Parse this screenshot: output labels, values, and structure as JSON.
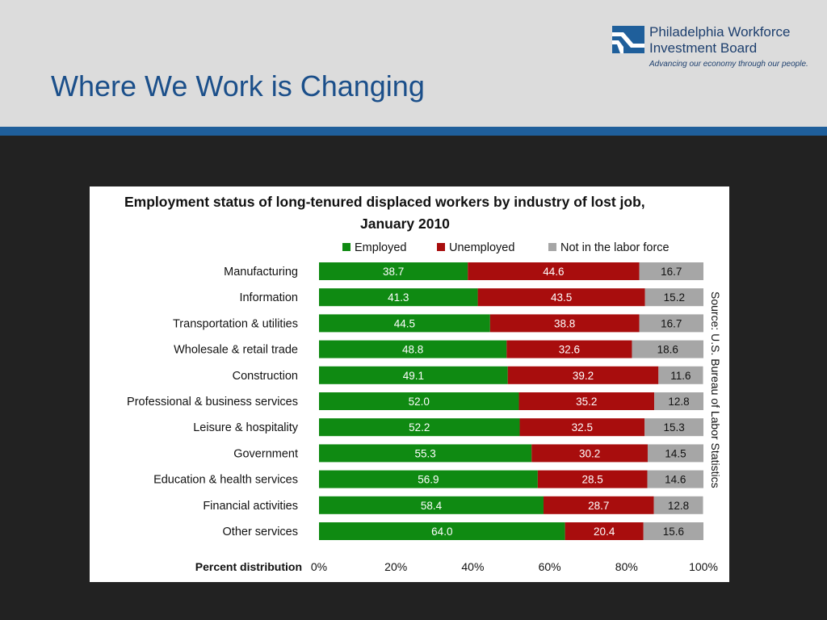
{
  "slide": {
    "title": "Where We Work is Changing"
  },
  "logo": {
    "name_line1": "Philadelphia Workforce",
    "name_line2": "Investment Board",
    "tagline": "Advancing our economy through our people."
  },
  "colors": {
    "header_bg": "#dcdcdc",
    "stripe": "#1f5f9b",
    "slide_bg": "#222222",
    "title_text": "#1b4f8a",
    "employed": "#0f8a12",
    "unemployed": "#a80d0d",
    "not_in_labor_force": "#a6a6a6"
  },
  "chart_data": {
    "type": "bar",
    "orientation": "horizontal",
    "stacked": true,
    "title_line1": "Employment status of long-tenured displaced workers by industry of lost job,",
    "title_line2": "January 2010",
    "xlabel": "Percent distribution",
    "xlim": [
      0,
      100
    ],
    "xticks": [
      "0%",
      "20%",
      "40%",
      "60%",
      "80%",
      "100%"
    ],
    "legend_position": "top",
    "source_note": "Source: U.S. Bureau of Labor Statistics",
    "categories": [
      "Manufacturing",
      "Information",
      "Transportation & utilities",
      "Wholesale & retail trade",
      "Construction",
      "Professional & business services",
      "Leisure & hospitality",
      "Government",
      "Education & health services",
      "Financial activities",
      "Other services"
    ],
    "series": [
      {
        "name": "Employed",
        "color": "#0f8a12",
        "values": [
          38.7,
          41.3,
          44.5,
          48.8,
          49.1,
          52.0,
          52.2,
          55.3,
          56.9,
          58.4,
          64.0
        ]
      },
      {
        "name": "Unemployed",
        "color": "#a80d0d",
        "values": [
          44.6,
          43.5,
          38.8,
          32.6,
          39.2,
          35.2,
          32.5,
          30.2,
          28.5,
          28.7,
          20.4
        ]
      },
      {
        "name": "Not in the labor force",
        "color": "#a6a6a6",
        "values": [
          16.7,
          15.2,
          16.7,
          18.6,
          11.6,
          12.8,
          15.3,
          14.5,
          14.6,
          12.8,
          15.6
        ]
      }
    ]
  }
}
